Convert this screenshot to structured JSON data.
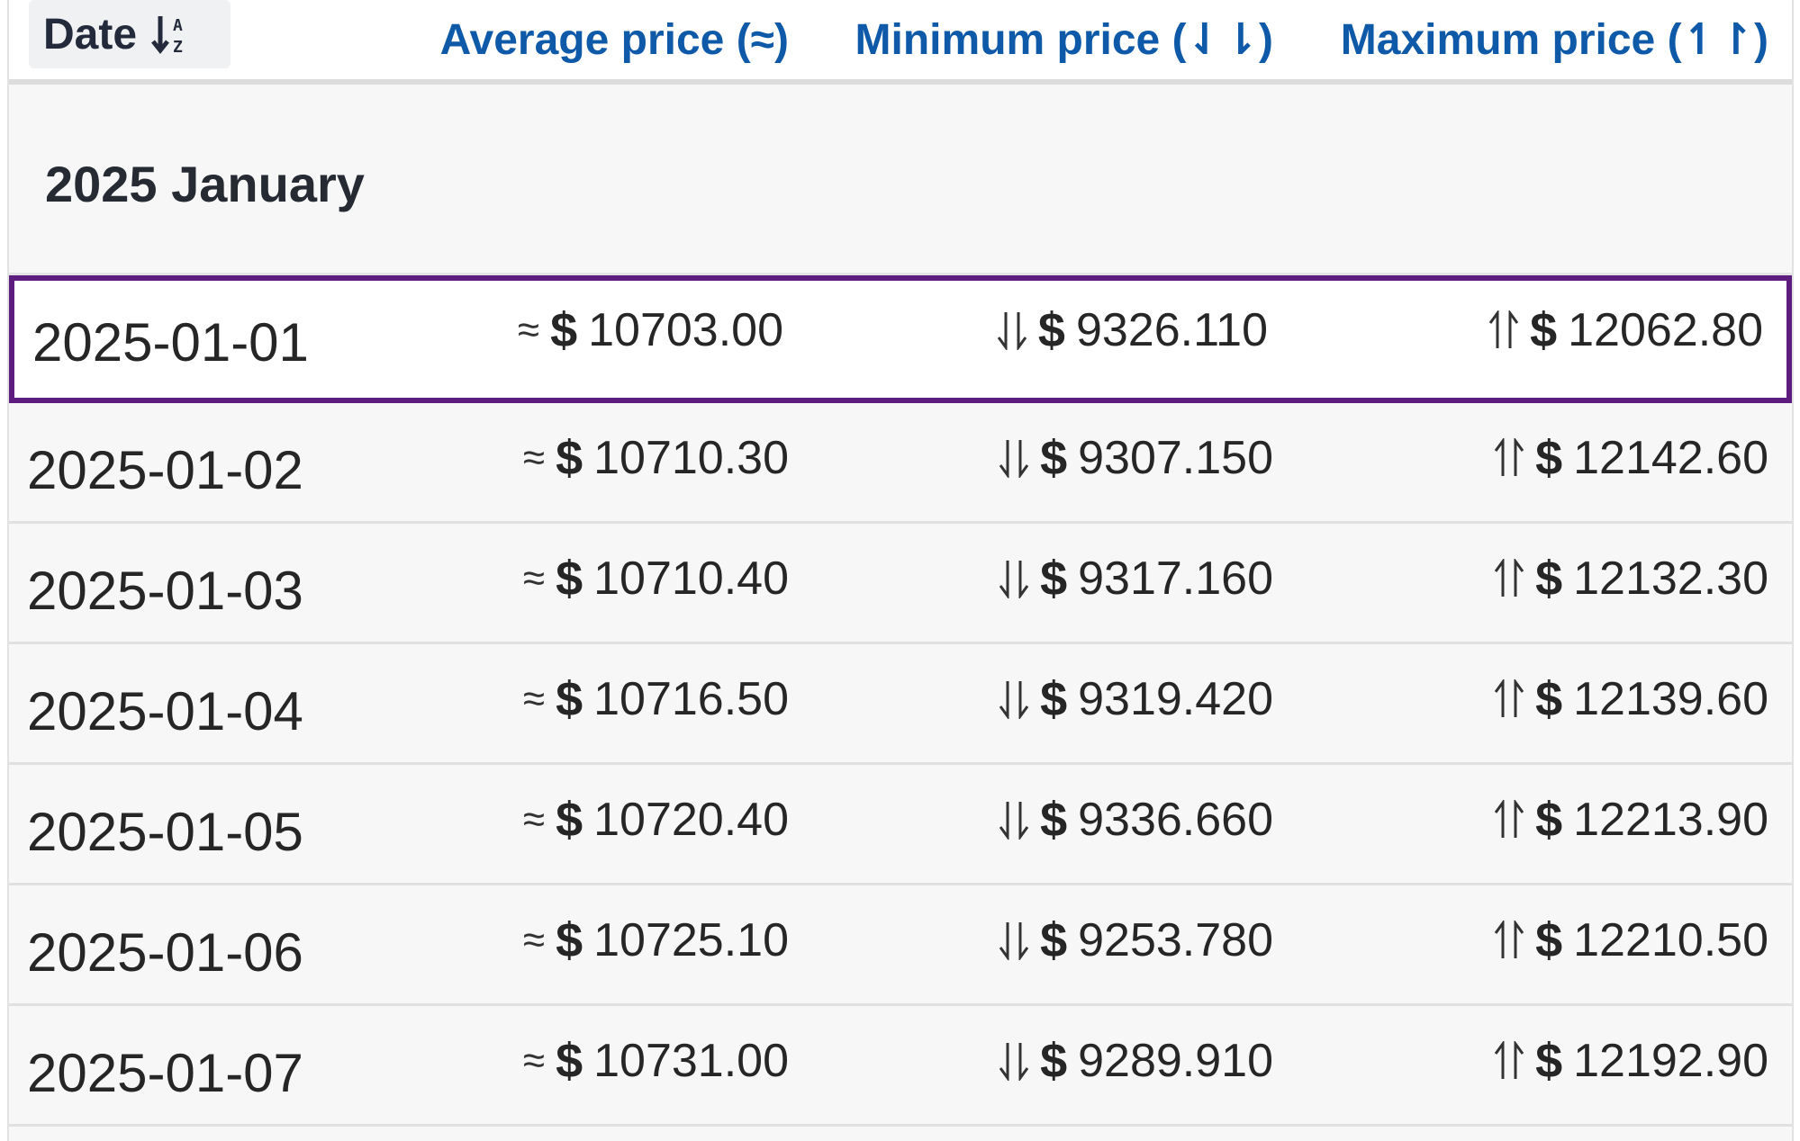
{
  "header": {
    "date_label": "Date",
    "avg_label": "Average price (≈)",
    "min_label": "Minimum price (⇃⇂)",
    "max_label": "Maximum price (↿↾)"
  },
  "group": {
    "title": "2025 January"
  },
  "symbols": {
    "approx": "≈",
    "currency": "$"
  },
  "rows": [
    {
      "date": "2025-01-01",
      "avg": "10703.00",
      "min": "9326.110",
      "max": "12062.80"
    },
    {
      "date": "2025-01-02",
      "avg": "10710.30",
      "min": "9307.150",
      "max": "12142.60"
    },
    {
      "date": "2025-01-03",
      "avg": "10710.40",
      "min": "9317.160",
      "max": "12132.30"
    },
    {
      "date": "2025-01-04",
      "avg": "10716.50",
      "min": "9319.420",
      "max": "12139.60"
    },
    {
      "date": "2025-01-05",
      "avg": "10720.40",
      "min": "9336.660",
      "max": "12213.90"
    },
    {
      "date": "2025-01-06",
      "avg": "10725.10",
      "min": "9253.780",
      "max": "12210.50"
    },
    {
      "date": "2025-01-07",
      "avg": "10731.00",
      "min": "9289.910",
      "max": "12192.90"
    }
  ],
  "colors": {
    "header_link": "#0f5aa8",
    "selected_border": "#5c1d7e",
    "row_bg": "#f7f7f7"
  }
}
